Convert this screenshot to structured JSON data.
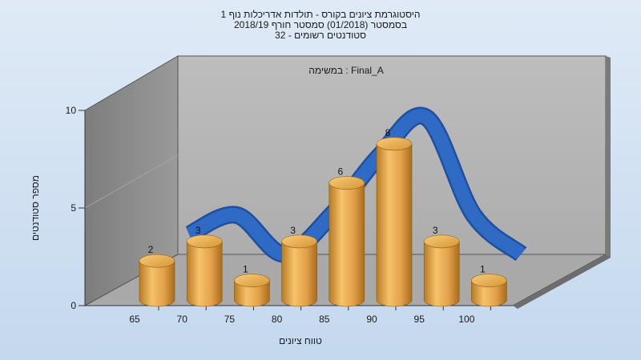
{
  "chart_data": {
    "type": "bar",
    "title_lines": [
      "היסטוגרמת ציונים בקורס - תולדות אדריכלות נוף 1",
      "בסמסטר  (01/2018)  סמסטר חורף 2018/19",
      "סטודנטים רשומים - 32"
    ],
    "annotation": "במשימה : Final_A",
    "xlabel": "טווח ציונים",
    "ylabel": "מספר סטודנטים",
    "categories": [
      "65",
      "70",
      "75",
      "80",
      "85",
      "90",
      "95",
      "100"
    ],
    "values": [
      2,
      3,
      1,
      3,
      6,
      8,
      3,
      1
    ],
    "ylim": [
      0,
      10
    ],
    "yticks": [
      0,
      5,
      10
    ],
    "trend_line": true,
    "grid": false,
    "colors": {
      "bar": "#e9a94a",
      "trend": "#2f6ac4",
      "back_wall": "#b3b3b3",
      "side_wall": "#8a8a8a",
      "floor": "#a7a7a7"
    }
  }
}
